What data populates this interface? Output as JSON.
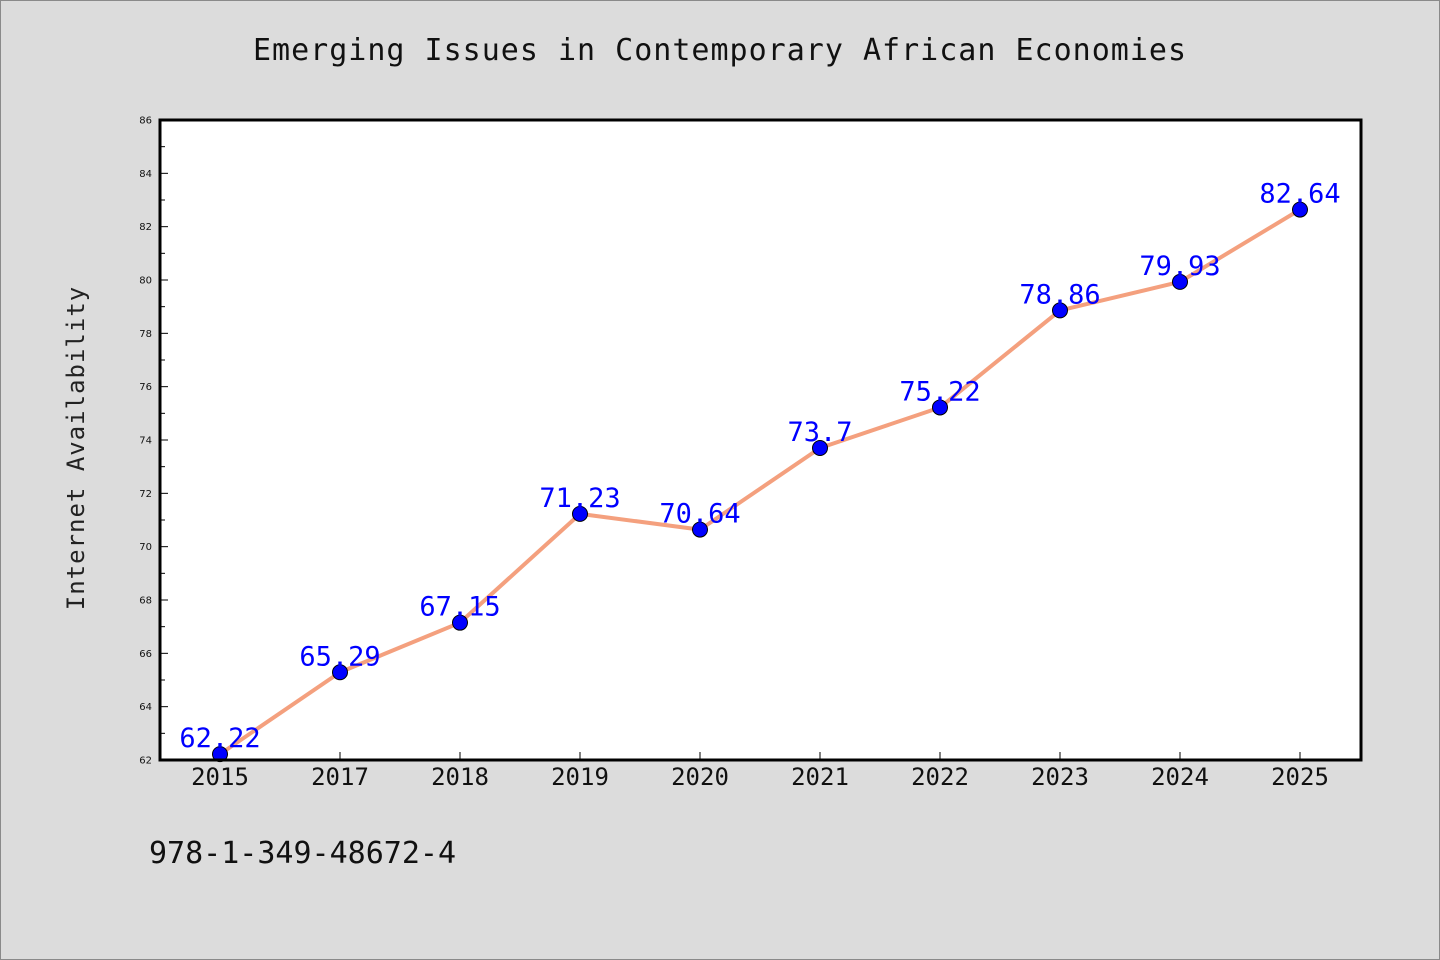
{
  "chart_data": {
    "type": "line",
    "title": "Emerging Issues in Contemporary African Economies",
    "xlabel": "",
    "ylabel": "Internet Availability",
    "categories": [
      "2015",
      "2017",
      "2018",
      "2019",
      "2020",
      "2021",
      "2022",
      "2023",
      "2024",
      "2025"
    ],
    "values": [
      62.22,
      65.29,
      67.15,
      71.23,
      70.64,
      73.7,
      75.22,
      78.86,
      79.93,
      82.64
    ],
    "data_labels": [
      "62.22",
      "65.29",
      "67.15",
      "71.23",
      "70.64",
      "73.7",
      "75.22",
      "78.86",
      "79.93",
      "82.64"
    ],
    "ylim": [
      62,
      86
    ],
    "yticks": [
      62,
      64,
      66,
      68,
      70,
      72,
      74,
      76,
      78,
      80,
      82,
      84,
      86
    ],
    "grid": false,
    "line_color": "#f4a07e",
    "marker_color": "#0000ff",
    "label_color": "#0000ff"
  },
  "footer": {
    "isbn": "978-1-349-48672-4"
  }
}
